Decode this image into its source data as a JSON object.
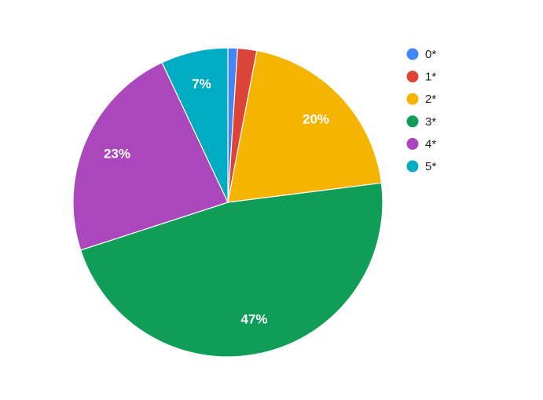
{
  "chart_data": {
    "type": "pie",
    "categories": [
      "0*",
      "1*",
      "2*",
      "3*",
      "4*",
      "5*"
    ],
    "values": [
      1,
      2,
      20,
      47,
      23,
      7
    ],
    "value_labels": [
      null,
      null,
      "20%",
      "47%",
      "23%",
      "7%"
    ],
    "colors": [
      "#4285f4",
      "#db4437",
      "#f4b400",
      "#0f9d58",
      "#ab47bc",
      "#00acc1"
    ],
    "legend": "right"
  }
}
